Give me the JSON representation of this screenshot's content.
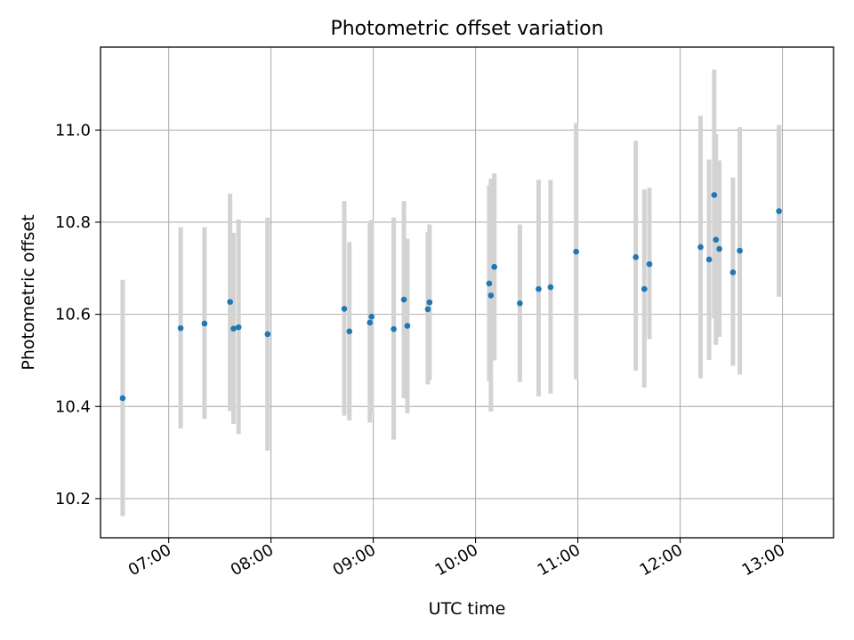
{
  "chart_data": {
    "type": "scatter",
    "title": "Photometric offset variation",
    "xlabel": "UTC time",
    "ylabel": "Photometric offset",
    "xlim": [
      "06:20",
      "13:30"
    ],
    "ylim": [
      10.115,
      11.18
    ],
    "grid": true,
    "x_ticks": [
      "07:00",
      "08:00",
      "09:00",
      "10:00",
      "11:00",
      "12:00",
      "13:00"
    ],
    "y_ticks": [
      10.2,
      10.4,
      10.6,
      10.8,
      11.0
    ],
    "y_tick_labels": [
      "10.2",
      "10.4",
      "10.6",
      "10.8",
      "11.0"
    ],
    "points": [
      {
        "t": "06:33",
        "y": 10.418,
        "lo": 10.162,
        "hi": 10.675
      },
      {
        "t": "07:07",
        "y": 10.57,
        "lo": 10.352,
        "hi": 10.789
      },
      {
        "t": "07:21",
        "y": 10.58,
        "lo": 10.373,
        "hi": 10.789
      },
      {
        "t": "07:36",
        "y": 10.627,
        "lo": 10.39,
        "hi": 10.862
      },
      {
        "t": "07:38",
        "y": 10.569,
        "lo": 10.362,
        "hi": 10.777
      },
      {
        "t": "07:41",
        "y": 10.572,
        "lo": 10.34,
        "hi": 10.806
      },
      {
        "t": "07:58",
        "y": 10.557,
        "lo": 10.304,
        "hi": 10.81
      },
      {
        "t": "08:43",
        "y": 10.612,
        "lo": 10.38,
        "hi": 10.846
      },
      {
        "t": "08:46",
        "y": 10.563,
        "lo": 10.37,
        "hi": 10.757
      },
      {
        "t": "08:58",
        "y": 10.582,
        "lo": 10.365,
        "hi": 10.798
      },
      {
        "t": "08:59",
        "y": 10.595,
        "lo": 10.385,
        "hi": 10.805
      },
      {
        "t": "09:12",
        "y": 10.568,
        "lo": 10.328,
        "hi": 10.81
      },
      {
        "t": "09:18",
        "y": 10.632,
        "lo": 10.418,
        "hi": 10.846
      },
      {
        "t": "09:20",
        "y": 10.575,
        "lo": 10.385,
        "hi": 10.764
      },
      {
        "t": "09:32",
        "y": 10.611,
        "lo": 10.448,
        "hi": 10.778
      },
      {
        "t": "09:33",
        "y": 10.626,
        "lo": 10.457,
        "hi": 10.795
      },
      {
        "t": "10:08",
        "y": 10.667,
        "lo": 10.455,
        "hi": 10.88
      },
      {
        "t": "10:09",
        "y": 10.641,
        "lo": 10.389,
        "hi": 10.895
      },
      {
        "t": "10:11",
        "y": 10.703,
        "lo": 10.5,
        "hi": 10.906
      },
      {
        "t": "10:26",
        "y": 10.624,
        "lo": 10.453,
        "hi": 10.795
      },
      {
        "t": "10:37",
        "y": 10.655,
        "lo": 10.422,
        "hi": 10.892
      },
      {
        "t": "10:44",
        "y": 10.659,
        "lo": 10.428,
        "hi": 10.892
      },
      {
        "t": "10:59",
        "y": 10.736,
        "lo": 10.459,
        "hi": 11.015
      },
      {
        "t": "11:34",
        "y": 10.724,
        "lo": 10.478,
        "hi": 10.977
      },
      {
        "t": "11:39",
        "y": 10.655,
        "lo": 10.441,
        "hi": 10.871
      },
      {
        "t": "11:42",
        "y": 10.709,
        "lo": 10.546,
        "hi": 10.875
      },
      {
        "t": "12:12",
        "y": 10.746,
        "lo": 10.461,
        "hi": 11.031
      },
      {
        "t": "12:17",
        "y": 10.719,
        "lo": 10.501,
        "hi": 10.936
      },
      {
        "t": "12:20",
        "y": 10.859,
        "lo": 10.591,
        "hi": 11.131
      },
      {
        "t": "12:21",
        "y": 10.762,
        "lo": 10.534,
        "hi": 10.991
      },
      {
        "t": "12:23",
        "y": 10.742,
        "lo": 10.551,
        "hi": 10.934
      },
      {
        "t": "12:31",
        "y": 10.691,
        "lo": 10.488,
        "hi": 10.897
      },
      {
        "t": "12:35",
        "y": 10.738,
        "lo": 10.469,
        "hi": 11.006
      },
      {
        "t": "12:58",
        "y": 10.824,
        "lo": 10.638,
        "hi": 11.011
      }
    ],
    "colors": {
      "point": "#1f77b4",
      "errorbar": "#d3d3d3",
      "grid": "#b0b0b0",
      "axes": "#000000"
    }
  }
}
